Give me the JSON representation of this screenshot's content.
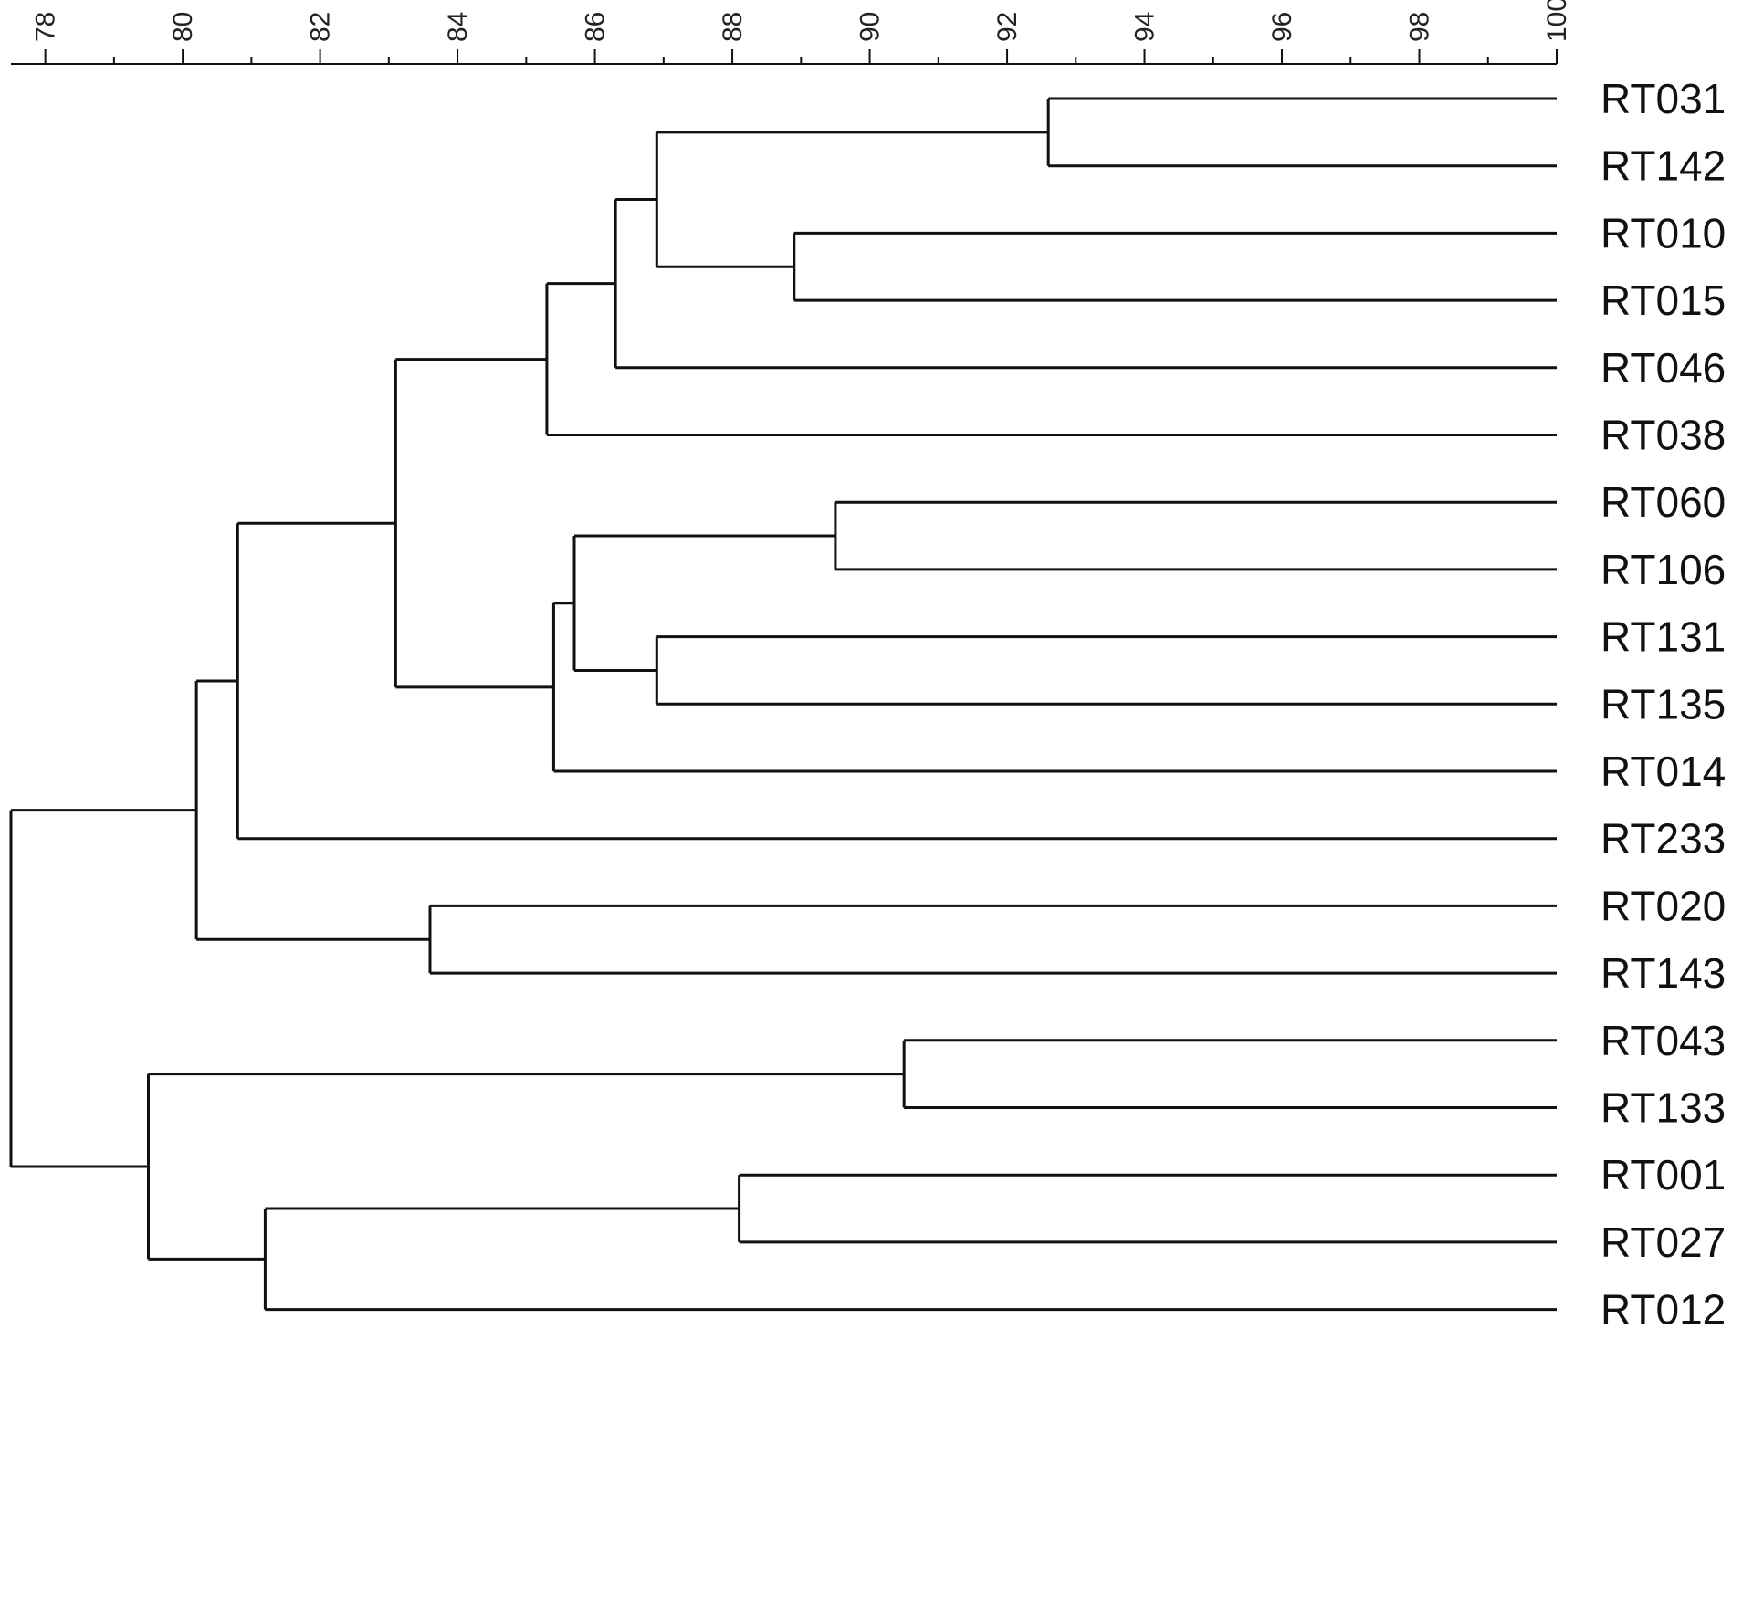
{
  "scale": {
    "ticks": [
      78,
      80,
      82,
      84,
      86,
      88,
      90,
      92,
      94,
      96,
      98,
      100
    ],
    "range": [
      77.5,
      100
    ],
    "minor_step": 1
  },
  "leaves": [
    "RT031",
    "RT142",
    "RT010",
    "RT015",
    "RT046",
    "RT038",
    "RT060",
    "RT106",
    "RT131",
    "RT135",
    "RT014",
    "RT233",
    "RT020",
    "RT143",
    "RT043",
    "RT133",
    "RT001",
    "RT027",
    "RT012"
  ],
  "tree": {
    "h": 77.5,
    "c": [
      {
        "h": 80.2,
        "c": [
          {
            "h": 80.8,
            "c": [
              {
                "h": 83.1,
                "c": [
                  {
                    "h": 85.3,
                    "c": [
                      {
                        "h": 86.3,
                        "c": [
                          {
                            "h": 86.9,
                            "c": [
                              {
                                "h": 92.6,
                                "c": [
                                  {
                                    "l": "RT031"
                                  },
                                  {
                                    "l": "RT142"
                                  }
                                ]
                              },
                              {
                                "h": 88.9,
                                "c": [
                                  {
                                    "l": "RT010"
                                  },
                                  {
                                    "l": "RT015"
                                  }
                                ]
                              }
                            ]
                          },
                          {
                            "l": "RT046"
                          }
                        ]
                      },
                      {
                        "l": "RT038"
                      }
                    ]
                  },
                  {
                    "h": 85.4,
                    "c": [
                      {
                        "h": 85.7,
                        "c": [
                          {
                            "h": 89.5,
                            "c": [
                              {
                                "l": "RT060"
                              },
                              {
                                "l": "RT106"
                              }
                            ]
                          },
                          {
                            "h": 86.9,
                            "c": [
                              {
                                "l": "RT131"
                              },
                              {
                                "l": "RT135"
                              }
                            ]
                          }
                        ]
                      },
                      {
                        "l": "RT014"
                      }
                    ]
                  }
                ]
              },
              {
                "l": "RT233"
              }
            ]
          },
          {
            "h": 83.6,
            "c": [
              {
                "l": "RT020"
              },
              {
                "l": "RT143"
              }
            ]
          }
        ]
      },
      {
        "h": 79.5,
        "c": [
          {
            "h": 90.5,
            "c": [
              {
                "l": "RT043"
              },
              {
                "l": "RT133"
              }
            ]
          },
          {
            "h": 81.2,
            "c": [
              {
                "h": 88.1,
                "c": [
                  {
                    "l": "RT001"
                  },
                  {
                    "l": "RT027"
                  }
                ]
              },
              {
                "l": "RT012"
              }
            ]
          }
        ]
      }
    ]
  }
}
